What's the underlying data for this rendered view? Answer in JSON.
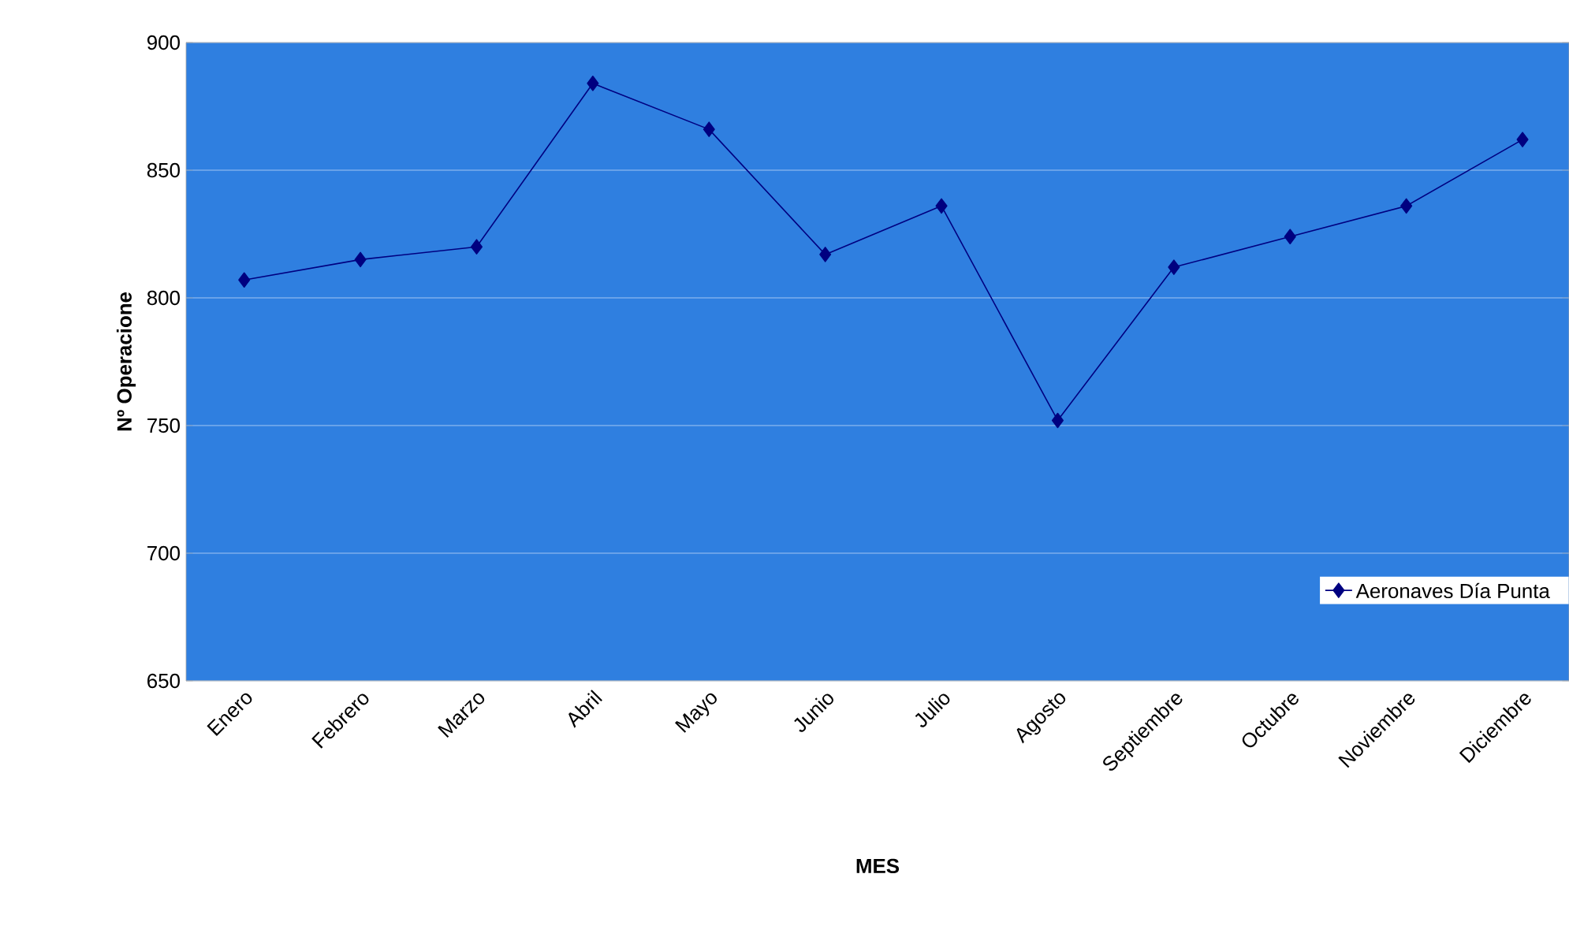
{
  "chart_data": {
    "type": "line",
    "xlabel": "MES",
    "ylabel": "Nº Operacione",
    "categories": [
      "Enero",
      "Febrero",
      "Marzo",
      "Abril",
      "Mayo",
      "Junio",
      "Julio",
      "Agosto",
      "Septiembre",
      "Octubre",
      "Noviembre",
      "Diciembre"
    ],
    "series": [
      {
        "name": "Aeronaves Día Punta",
        "color": "#000080",
        "values": [
          807,
          815,
          820,
          884,
          866,
          817,
          836,
          752,
          812,
          824,
          836,
          862
        ]
      }
    ],
    "ylim": [
      650,
      900
    ],
    "yticks": [
      650,
      700,
      750,
      800,
      850,
      900
    ],
    "grid": "y",
    "legend": "bottom right",
    "marker": "diamond",
    "line_style": "solid"
  }
}
